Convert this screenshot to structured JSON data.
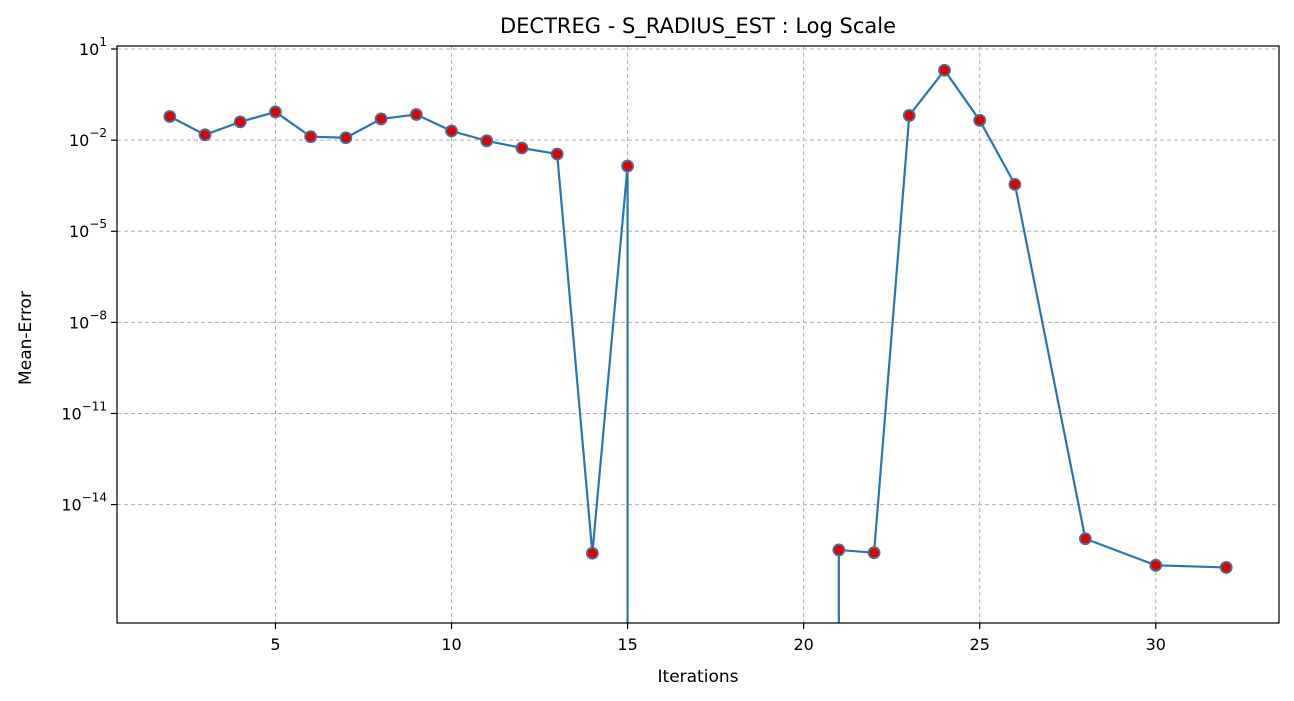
{
  "chart_data": {
    "type": "line",
    "title": "DECTREG - S_RADIUS_EST : Log Scale",
    "xlabel": "Iterations",
    "ylabel": "Mean-Error",
    "yscale": "log",
    "xlim": [
      0.5,
      33.5
    ],
    "ylim_log10": [
      -17.9,
      1.1
    ],
    "grid": true,
    "xticks": [
      5,
      10,
      15,
      20,
      25,
      30
    ],
    "yticks": [
      {
        "base": "10",
        "exp": "1",
        "log10": 1
      },
      {
        "base": "10",
        "exp": "−2",
        "log10": -2
      },
      {
        "base": "10",
        "exp": "−5",
        "log10": -5
      },
      {
        "base": "10",
        "exp": "−8",
        "log10": -8
      },
      {
        "base": "10",
        "exp": "−11",
        "log10": -11
      },
      {
        "base": "10",
        "exp": "−14",
        "log10": -14
      }
    ],
    "series": [
      {
        "line_color": "#2878b0",
        "marker_face": "#e00000",
        "marker_edge": "#4a6d9a",
        "points": [
          {
            "x": 2,
            "y": 0.06
          },
          {
            "x": 3,
            "y": 0.015
          },
          {
            "x": 4,
            "y": 0.04
          },
          {
            "x": 5,
            "y": 0.085
          },
          {
            "x": 6,
            "y": 0.013
          },
          {
            "x": 7,
            "y": 0.012
          },
          {
            "x": 8,
            "y": 0.05
          },
          {
            "x": 9,
            "y": 0.07
          },
          {
            "x": 10,
            "y": 0.02
          },
          {
            "x": 11,
            "y": 0.0095
          },
          {
            "x": 12,
            "y": 0.0055
          },
          {
            "x": 13,
            "y": 0.0035
          },
          {
            "x": 14,
            "y": 2.5e-16
          },
          {
            "x": 15,
            "y": 0.0014
          },
          {
            "x": 21,
            "y": 3.2e-16
          },
          {
            "x": 22,
            "y": 2.6e-16
          },
          {
            "x": 23,
            "y": 0.065
          },
          {
            "x": 24,
            "y": 2.0
          },
          {
            "x": 25,
            "y": 0.045
          },
          {
            "x": 26,
            "y": 0.00035
          },
          {
            "x": 28,
            "y": 7.5e-16
          },
          {
            "x": 30,
            "y": 1e-16
          },
          {
            "x": 32,
            "y": 8.5e-17
          }
        ],
        "zero_segments": [
          {
            "from_x": 15,
            "to_x": 21
          }
        ]
      }
    ]
  }
}
